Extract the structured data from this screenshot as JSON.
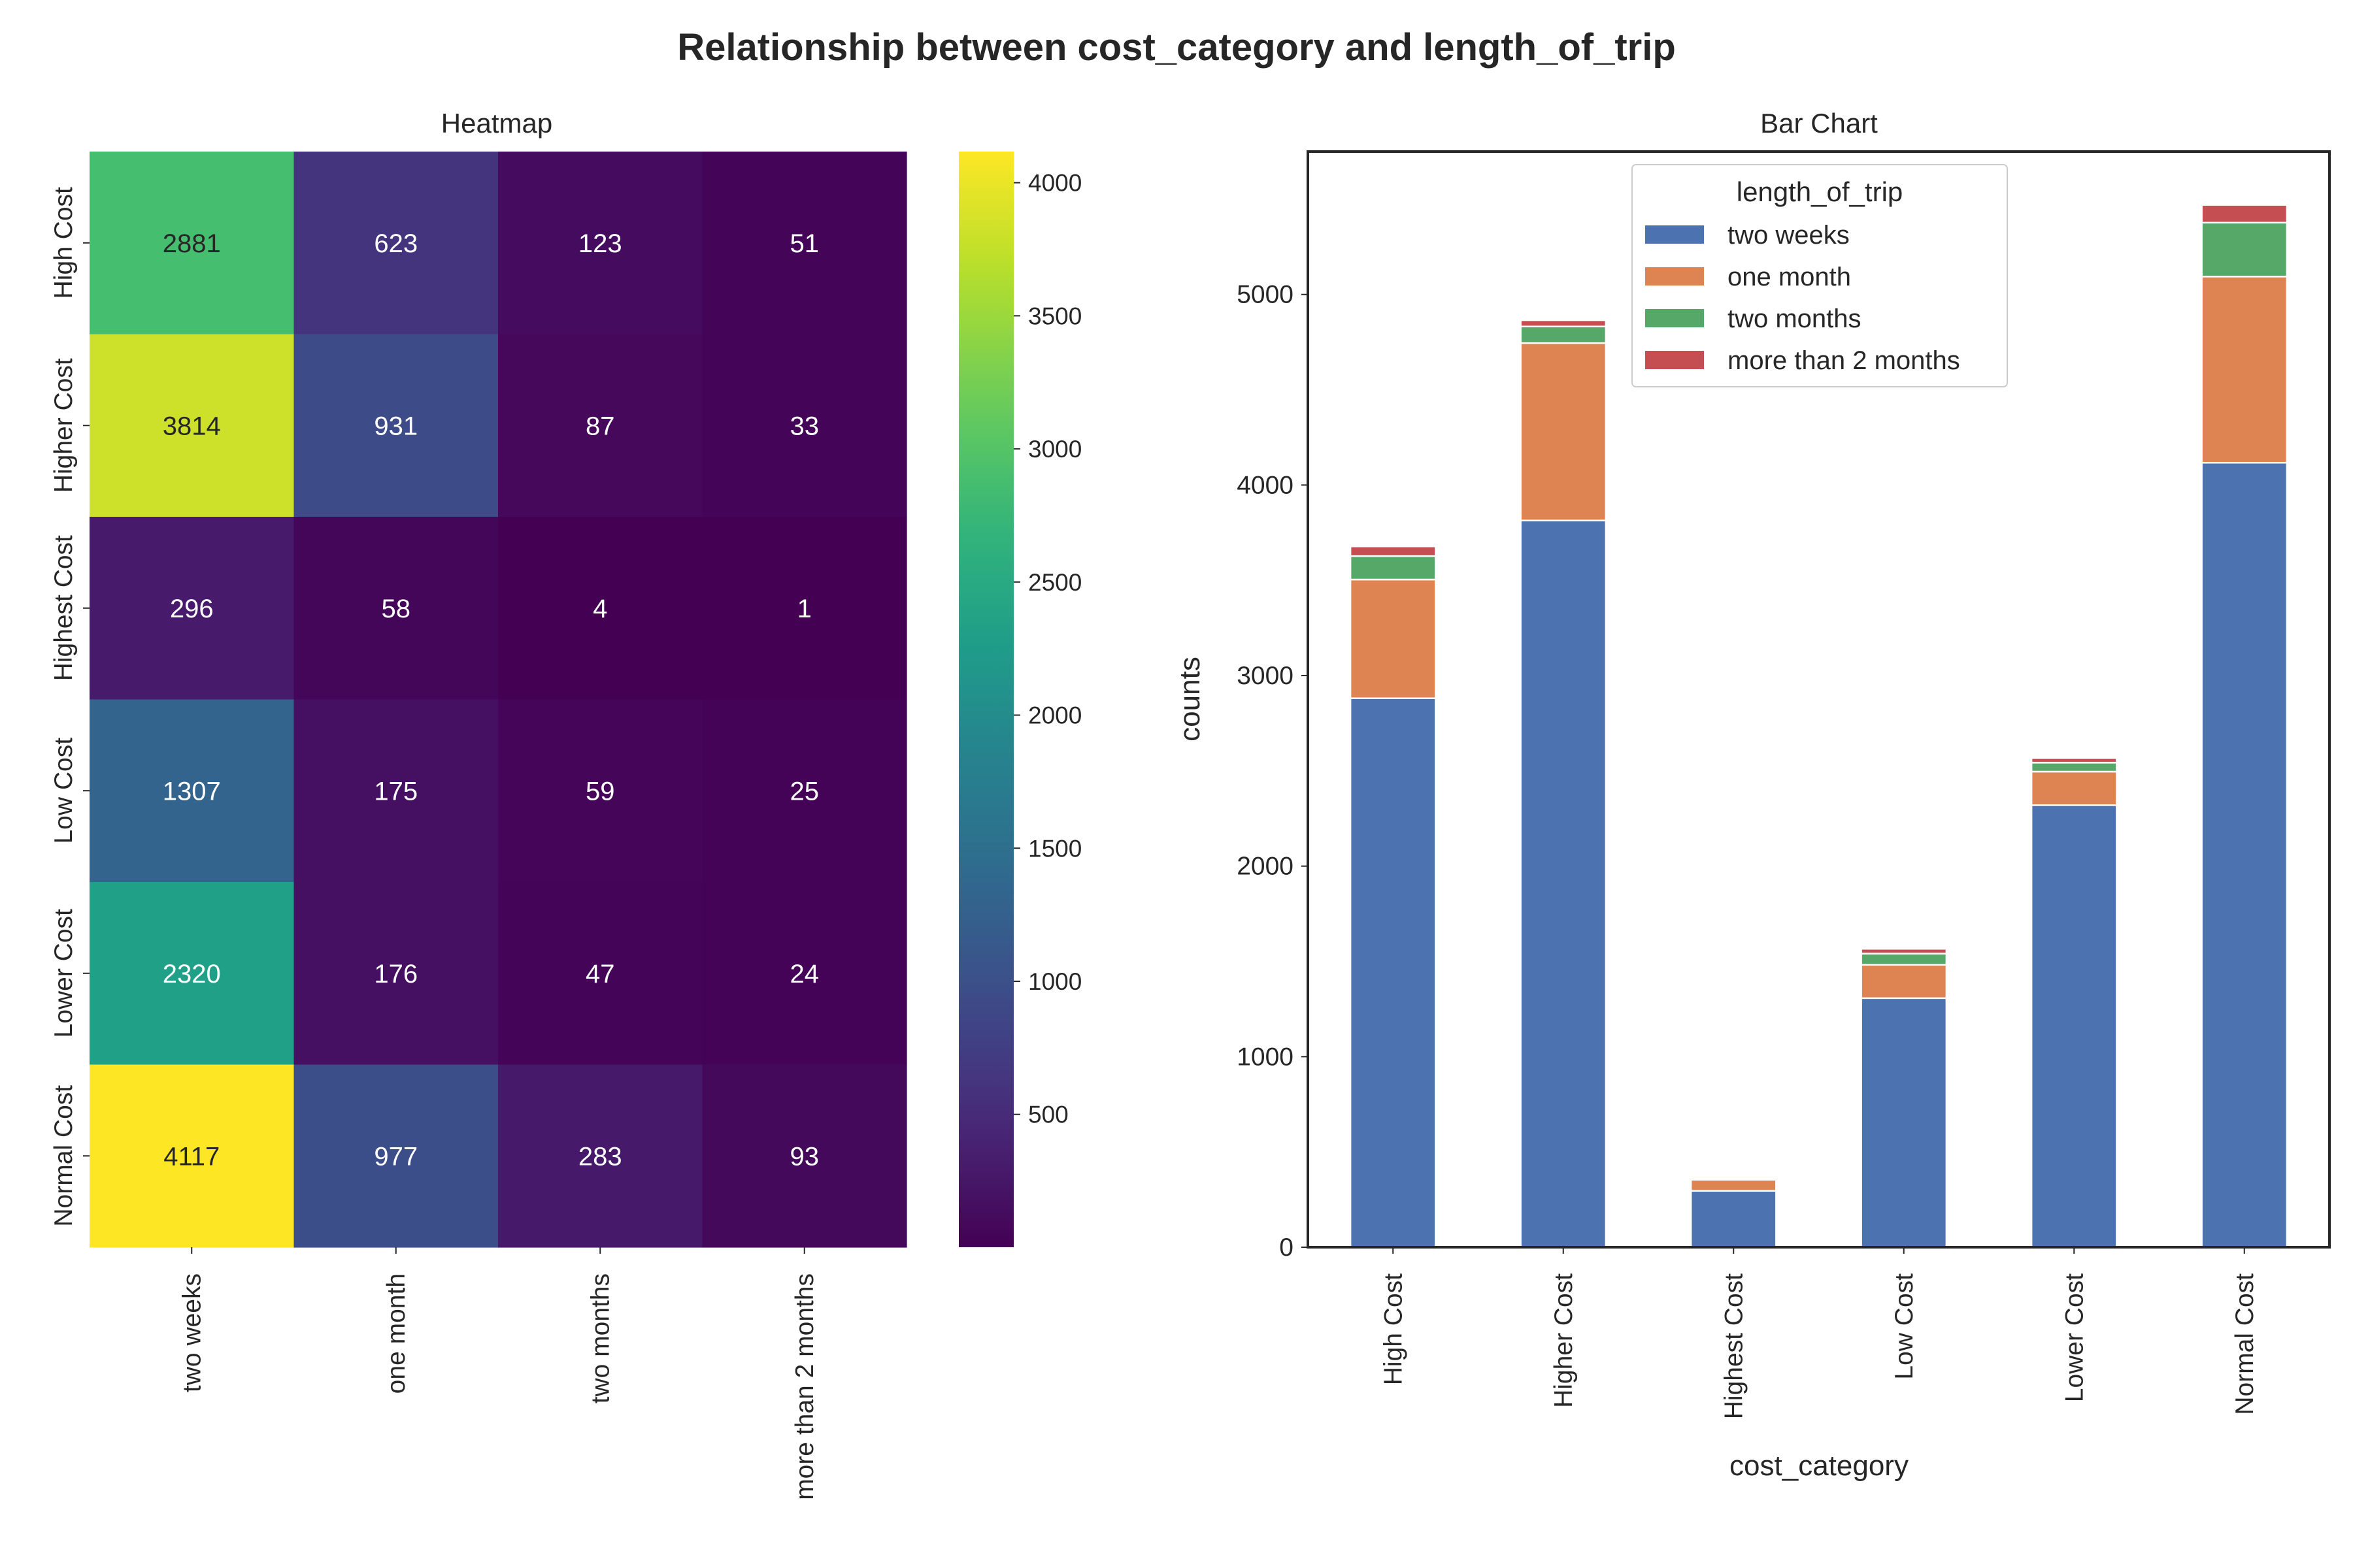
{
  "title": "Relationship between cost_category and length_of_trip",
  "chart_data": [
    {
      "type": "heatmap",
      "title": "Heatmap",
      "rows": [
        "High Cost",
        "Higher Cost",
        "Highest Cost",
        "Low Cost",
        "Lower Cost",
        "Normal Cost"
      ],
      "columns": [
        "two weeks",
        "one month",
        "two months",
        "more than 2 months"
      ],
      "values": [
        [
          2881,
          623,
          123,
          51
        ],
        [
          3814,
          931,
          87,
          33
        ],
        [
          296,
          58,
          4,
          1
        ],
        [
          1307,
          175,
          59,
          25
        ],
        [
          2320,
          176,
          47,
          24
        ],
        [
          4117,
          977,
          283,
          93
        ]
      ],
      "colormap": "viridis",
      "colorbar": {
        "range": [
          1,
          4117
        ],
        "ticks": [
          "500",
          "1000",
          "1500",
          "2000",
          "2500",
          "3000",
          "3500",
          "4000"
        ]
      }
    },
    {
      "type": "bar",
      "stacked": true,
      "title": "Bar Chart",
      "xlabel": "cost_category",
      "ylabel": "counts",
      "categories": [
        "High Cost",
        "Higher Cost",
        "Highest Cost",
        "Low Cost",
        "Lower Cost",
        "Normal Cost"
      ],
      "ylim": [
        0,
        5750
      ],
      "yticks": [
        "0",
        "1000",
        "2000",
        "3000",
        "4000",
        "5000"
      ],
      "legend": {
        "title": "length_of_trip",
        "placement": "upper-center"
      },
      "series": [
        {
          "name": "two weeks",
          "color": "#4c72b0",
          "values": [
            2881,
            3814,
            296,
            1307,
            2320,
            4117
          ]
        },
        {
          "name": "one month",
          "color": "#dd8452",
          "values": [
            623,
            931,
            58,
            175,
            176,
            977
          ]
        },
        {
          "name": "two months",
          "color": "#55a868",
          "values": [
            123,
            87,
            4,
            59,
            47,
            283
          ]
        },
        {
          "name": "more than 2 months",
          "color": "#c44e52",
          "values": [
            51,
            33,
            1,
            25,
            24,
            93
          ]
        }
      ]
    }
  ]
}
